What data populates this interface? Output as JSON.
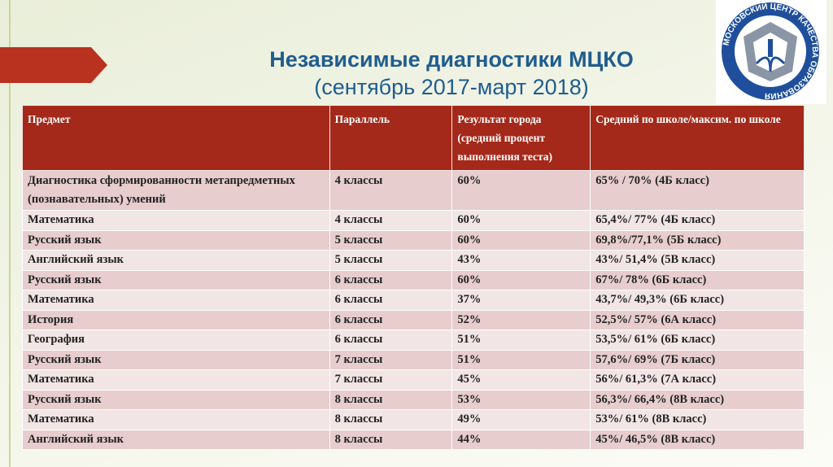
{
  "header": {
    "title": "Независимые диагностики МЦКО",
    "subtitle": "(сентябрь 2017-март 2018)",
    "logo_text": "МОСКОВСКИЙ ЦЕНТР КАЧЕСТВА ОБРАЗОВАНИЯ"
  },
  "table": {
    "columns": [
      "Предмет",
      "Параллель",
      "Результат города (средний процент выполнения теста)",
      "Средний по школе/максим. по школе"
    ],
    "rows": [
      [
        "Диагностика сформированности метапредметных (познавательных) умений",
        "4 классы",
        "60%",
        "65% / 70% (4Б класс)"
      ],
      [
        "Математика",
        "4 классы",
        "60%",
        "65,4%/ 77% (4Б класс)"
      ],
      [
        "Русский язык",
        "5 классы",
        "60%",
        "69,8%/77,1% (5Б класс)"
      ],
      [
        "Английский язык",
        "5 классы",
        "43%",
        "43%/ 51,4% (5В класс)"
      ],
      [
        "Русский язык",
        "6 классы",
        "60%",
        "67%/ 78% (6Б класс)"
      ],
      [
        "Математика",
        "6 классы",
        "37%",
        "43,7%/ 49,3% (6Б класс)"
      ],
      [
        "История",
        "6 классы",
        "52%",
        "52,5%/ 57% (6А класс)"
      ],
      [
        "География",
        "6 классы",
        "51%",
        "53,5%/ 61% (6Б класс)"
      ],
      [
        "Русский язык",
        "7 классы",
        "51%",
        "57,6%/ 69% (7Б класс)"
      ],
      [
        "Математика",
        "7 классы",
        "45%",
        "56%/ 61,3% (7А класс)"
      ],
      [
        "Русский язык",
        "8 классы",
        "53%",
        "56,3%/ 66,4% (8В класс)"
      ],
      [
        "Математика",
        "8 классы",
        "49%",
        "53%/ 61% (8В класс)"
      ],
      [
        "Английский язык",
        "8 классы",
        "44%",
        "45%/ 46,5% (8В класс)"
      ]
    ]
  }
}
